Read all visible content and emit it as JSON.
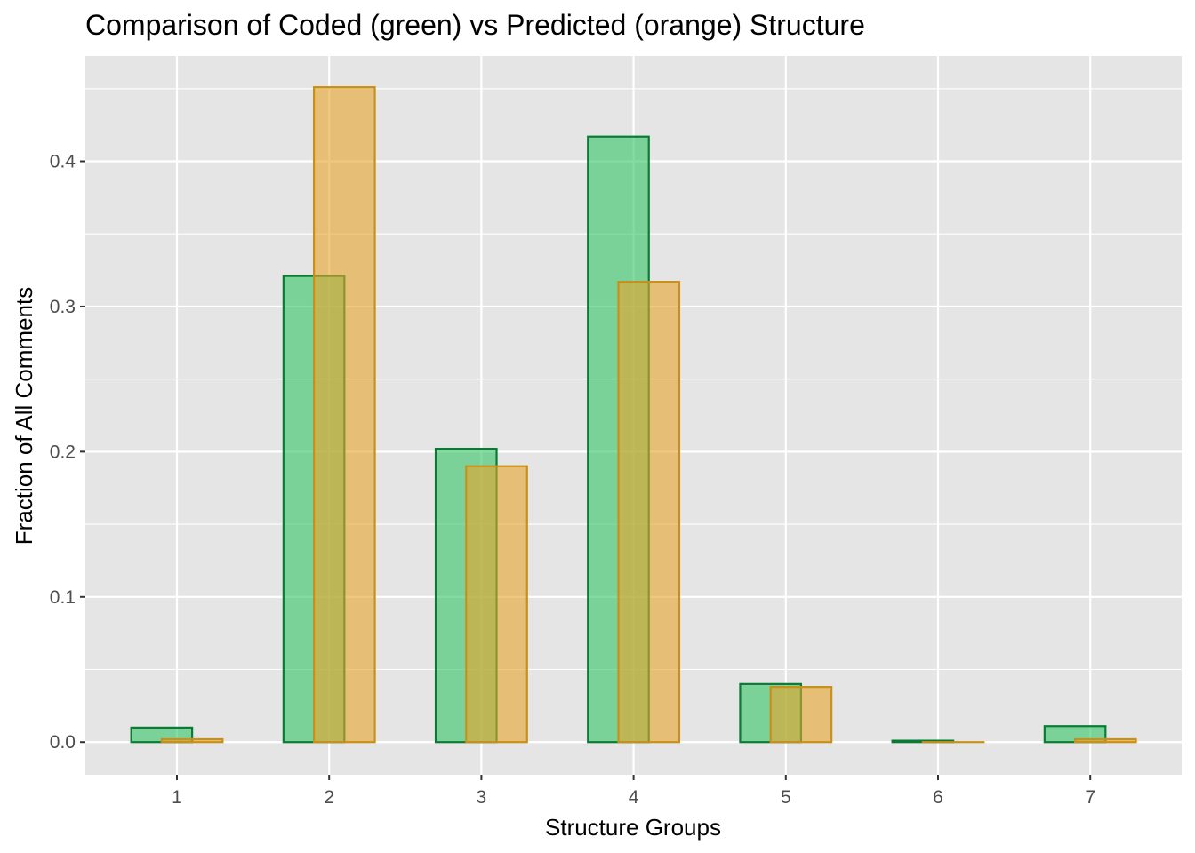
{
  "chart_data": {
    "type": "bar",
    "title": "Comparison of Coded (green) vs Predicted (orange) Structure",
    "xlabel": "Structure Groups",
    "ylabel": "Fraction of All Comments",
    "categories": [
      "1",
      "2",
      "3",
      "4",
      "5",
      "6",
      "7"
    ],
    "ylim": [
      -0.0225,
      0.4725
    ],
    "yticks": [
      "0.0",
      "0.1",
      "0.2",
      "0.3",
      "0.4"
    ],
    "grid": true,
    "legend": "none",
    "series": [
      {
        "values": [
          0.01,
          0.321,
          0.202,
          0.417,
          0.04,
          0.001,
          0.011
        ],
        "fill": "#33c466",
        "stroke": "#0a7a34",
        "offset": -0.1
      },
      {
        "values": [
          0.002,
          0.451,
          0.19,
          0.317,
          0.038,
          0.0,
          0.002
        ],
        "fill": "#e8a32a",
        "stroke": "#c8901a",
        "offset": 0.1
      }
    ],
    "panel_background": "#e5e5e5",
    "grid_color": "#ffffff"
  }
}
